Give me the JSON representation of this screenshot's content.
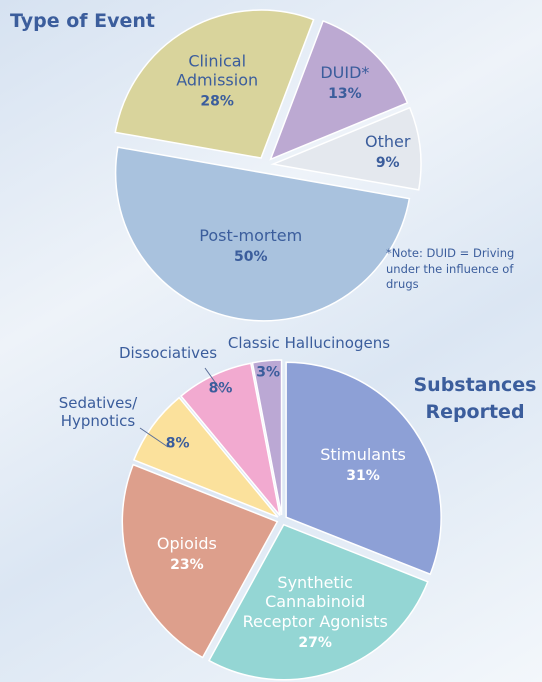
{
  "chart_data": [
    {
      "type": "pie",
      "title": "Type of Event",
      "categories": [
        "Clinical Admission",
        "DUID*",
        "Other",
        "Post-mortem"
      ],
      "values": [
        28,
        13,
        9,
        50
      ],
      "value_labels": [
        "28%",
        "13%",
        "9%",
        "50%"
      ],
      "colors": [
        "#d9d49c",
        "#bca9d2",
        "#e4e8ee",
        "#a9c2de"
      ],
      "annotation": "*Note: DUID = Driving under the influence of drugs"
    },
    {
      "type": "pie",
      "title": "Substances Reported",
      "categories": [
        "Stimulants",
        "Synthetic Cannabinoid Receptor Agonists",
        "Opioids",
        "Sedatives/ Hypnotics",
        "Dissociatives",
        "Classic Hallucinogens"
      ],
      "values": [
        31,
        27,
        23,
        8,
        8,
        3
      ],
      "value_labels": [
        "31%",
        "27%",
        "23%",
        "8%",
        "8%",
        "3%"
      ],
      "colors": [
        "#8da0d6",
        "#94d6d4",
        "#dd9f8c",
        "#fbe19c",
        "#f2aad0",
        "#bba8d4"
      ]
    }
  ]
}
